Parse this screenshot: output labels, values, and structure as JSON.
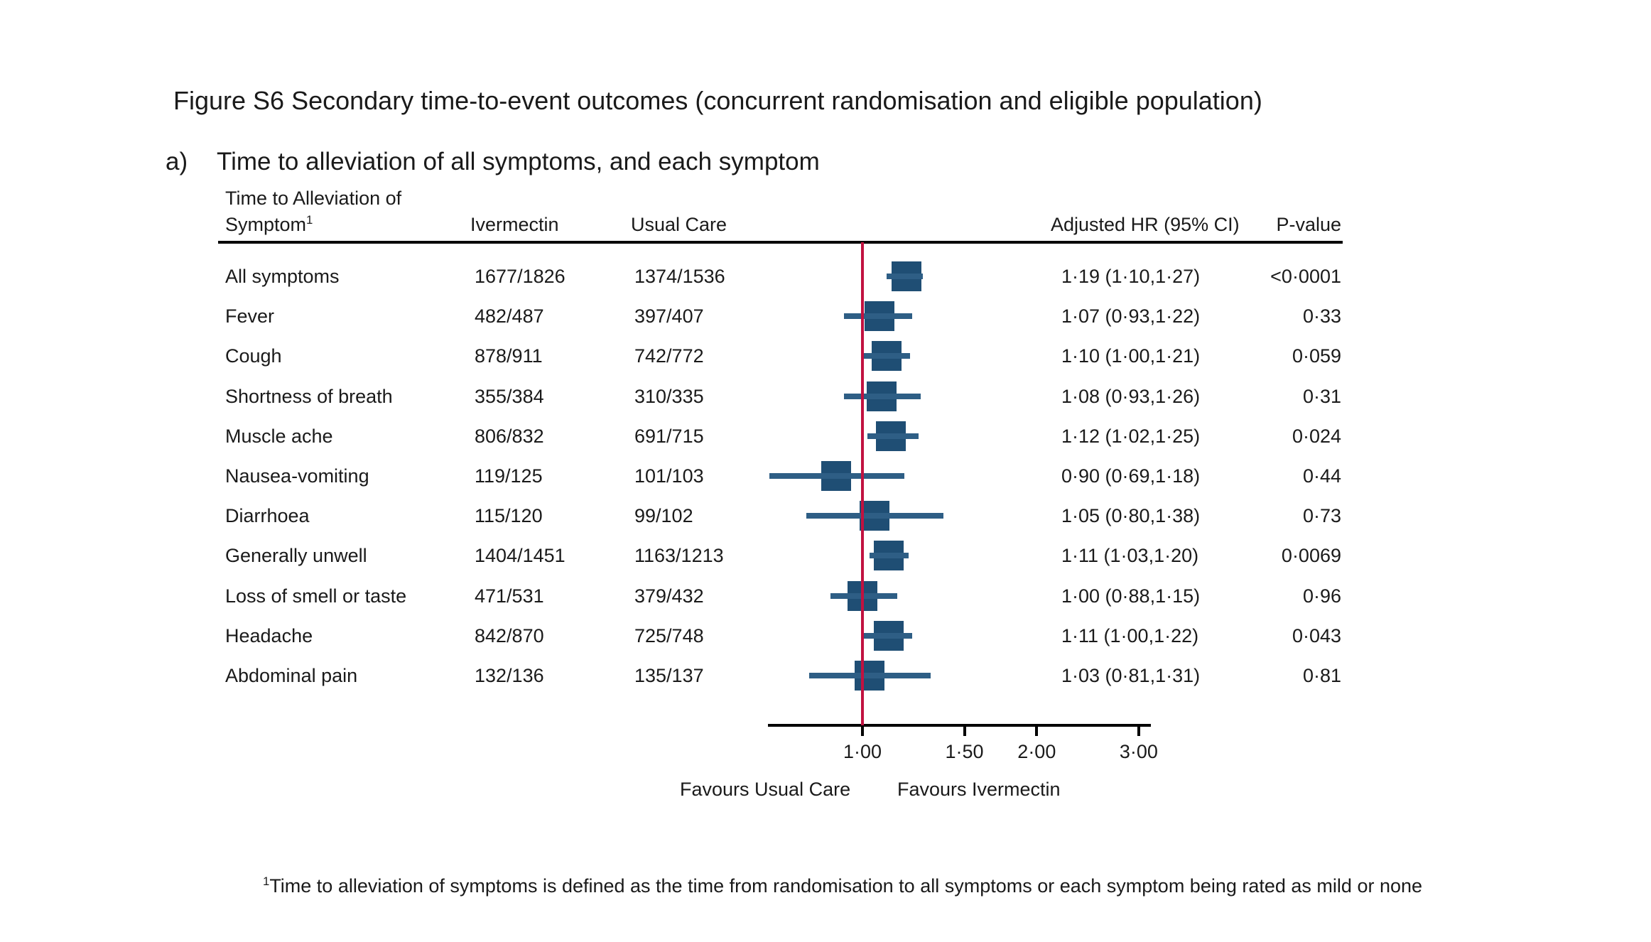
{
  "figure": {
    "title": "Figure S6 Secondary time-to-event outcomes (concurrent randomisation and eligible population)",
    "panel_label": "a)",
    "panel_title": "Time to alleviation of all symptoms, and each symptom",
    "footnote_sup": "1",
    "footnote": "Time to alleviation of symptoms is defined as the time from randomisation to all symptoms or each symptom being rated as mild or none"
  },
  "table_headers": {
    "symptom_line1": "Time to Alleviation of",
    "symptom_line2": "Symptom",
    "symptom_sup": "1",
    "ivermectin": "Ivermectin",
    "usual_care": "Usual Care",
    "adjusted_hr": "Adjusted HR (95% CI)",
    "p_value": "P-value"
  },
  "chart_data": {
    "type": "forest",
    "title": "Time to alleviation of all symptoms, and each symptom",
    "x_axis": {
      "scale": "log",
      "ticks": [
        1.0,
        1.5,
        2.0,
        3.0
      ],
      "tick_labels": [
        "1·00",
        "1·50",
        "2·00",
        "3·00"
      ],
      "range": [
        0.68,
        3.15
      ],
      "reference_line": 1.0
    },
    "favours_left": "Favours Usual Care",
    "favours_right": "Favours Ivermectin",
    "rows": [
      {
        "label": "All symptoms",
        "ivermectin": "1677/1826",
        "usual_care": "1374/1536",
        "hr": 1.19,
        "ci_low": 1.1,
        "ci_high": 1.27,
        "hr_text": "1·19 (1·10,1·27)",
        "p_value": "<0·0001"
      },
      {
        "label": "Fever",
        "ivermectin": "482/487",
        "usual_care": "397/407",
        "hr": 1.07,
        "ci_low": 0.93,
        "ci_high": 1.22,
        "hr_text": "1·07 (0·93,1·22)",
        "p_value": "0·33"
      },
      {
        "label": "Cough",
        "ivermectin": "878/911",
        "usual_care": "742/772",
        "hr": 1.1,
        "ci_low": 1.0,
        "ci_high": 1.21,
        "hr_text": "1·10 (1·00,1·21)",
        "p_value": "0·059"
      },
      {
        "label": "Shortness of breath",
        "ivermectin": "355/384",
        "usual_care": "310/335",
        "hr": 1.08,
        "ci_low": 0.93,
        "ci_high": 1.26,
        "hr_text": "1·08 (0·93,1·26)",
        "p_value": "0·31"
      },
      {
        "label": "Muscle ache",
        "ivermectin": "806/832",
        "usual_care": "691/715",
        "hr": 1.12,
        "ci_low": 1.02,
        "ci_high": 1.25,
        "hr_text": "1·12 (1·02,1·25)",
        "p_value": "0·024"
      },
      {
        "label": "Nausea-vomiting",
        "ivermectin": "119/125",
        "usual_care": "101/103",
        "hr": 0.9,
        "ci_low": 0.69,
        "ci_high": 1.18,
        "hr_text": "0·90 (0·69,1·18)",
        "p_value": "0·44"
      },
      {
        "label": "Diarrhoea",
        "ivermectin": "115/120",
        "usual_care": "99/102",
        "hr": 1.05,
        "ci_low": 0.8,
        "ci_high": 1.38,
        "hr_text": "1·05 (0·80,1·38)",
        "p_value": "0·73"
      },
      {
        "label": "Generally unwell",
        "ivermectin": "1404/1451",
        "usual_care": "1163/1213",
        "hr": 1.11,
        "ci_low": 1.03,
        "ci_high": 1.2,
        "hr_text": "1·11 (1·03,1·20)",
        "p_value": "0·0069"
      },
      {
        "label": "Loss of smell or taste",
        "ivermectin": "471/531",
        "usual_care": "379/432",
        "hr": 1.0,
        "ci_low": 0.88,
        "ci_high": 1.15,
        "hr_text": "1·00 (0·88,1·15)",
        "p_value": "0·96"
      },
      {
        "label": "Headache",
        "ivermectin": "842/870",
        "usual_care": "725/748",
        "hr": 1.11,
        "ci_low": 1.0,
        "ci_high": 1.22,
        "hr_text": "1·11 (1·00,1·22)",
        "p_value": "0·043"
      },
      {
        "label": "Abdominal pain",
        "ivermectin": "132/136",
        "usual_care": "135/137",
        "hr": 1.03,
        "ci_low": 0.81,
        "ci_high": 1.31,
        "hr_text": "1·03 (0·81,1·31)",
        "p_value": "0·81"
      }
    ],
    "colors": {
      "marker": "#1f4e74",
      "ci_line": "#2e5e85",
      "reference_line": "#c11240",
      "axis": "#000000"
    }
  }
}
